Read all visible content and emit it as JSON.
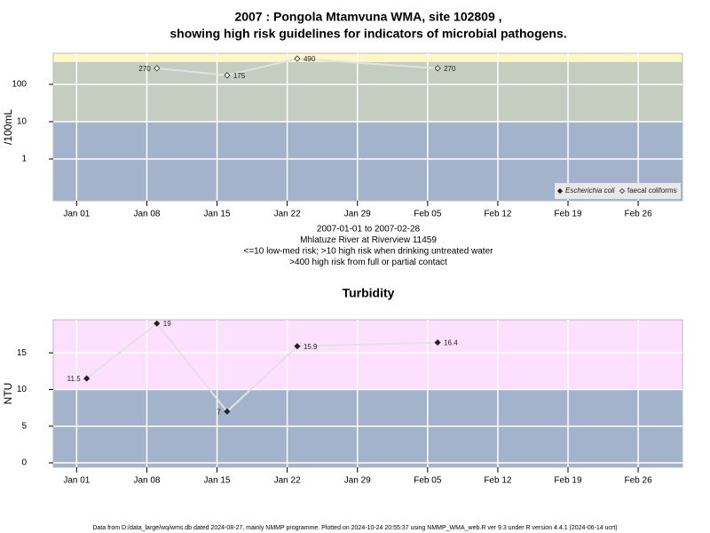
{
  "chart_data": [
    {
      "type": "line",
      "title": [
        "2007 : Pongola Mtamvuna WMA, site 102809 ,",
        "showing high risk guidelines for indicators of microbial pathogens."
      ],
      "ylabel": "/100mL",
      "annotations": [
        "2007-01-01 to 2007-02-28",
        "Mhlatuze River at Riverview 11459",
        "<=10 low-med risk; >10 high risk when drinking untreated water",
        ">400 high risk from full or partial contact"
      ],
      "log_scale": true,
      "ylim": [
        0.076,
        680
      ],
      "yticks": [
        1,
        10,
        100
      ],
      "xlim": [
        "2006-12-29T16:00",
        "2007-03-02T10:00"
      ],
      "xticks": [
        {
          "value": "2007-01-01",
          "label": "Jan 01"
        },
        {
          "value": "2007-01-08",
          "label": "Jan 08"
        },
        {
          "value": "2007-01-15",
          "label": "Jan 15"
        },
        {
          "value": "2007-01-22",
          "label": "Jan 22"
        },
        {
          "value": "2007-01-29",
          "label": "Jan 29"
        },
        {
          "value": "2007-02-05",
          "label": "Feb 05"
        },
        {
          "value": "2007-02-12",
          "label": "Feb 12"
        },
        {
          "value": "2007-02-19",
          "label": "Feb 19"
        },
        {
          "value": "2007-02-26",
          "label": "Feb 26"
        }
      ],
      "bands": [
        {
          "to": 10,
          "color": "#a3b3cb"
        },
        {
          "from": 10,
          "to": 400,
          "color": "#c4cdc0"
        },
        {
          "from": 400,
          "color": "#fdf8c6"
        }
      ],
      "grid": true,
      "legend": "lower right",
      "series": [
        {
          "name": "Escherichia coli",
          "marker": "filled",
          "x": [],
          "values": []
        },
        {
          "name": "faecal coliforms",
          "marker": "hollow",
          "x": [
            "2007-01-09",
            "2007-01-16",
            "2007-01-23",
            "2007-02-06"
          ],
          "values": [
            270,
            175,
            490,
            270
          ]
        }
      ]
    },
    {
      "type": "line",
      "title": "Turbidity",
      "ylabel": "NTU",
      "ylim": [
        -0.6,
        19.5
      ],
      "yticks": [
        0,
        5,
        10,
        15
      ],
      "xlim": [
        "2006-12-29T16:00",
        "2007-03-02T10:00"
      ],
      "xticks": [
        {
          "value": "2007-01-01",
          "label": "Jan 01"
        },
        {
          "value": "2007-01-08",
          "label": "Jan 08"
        },
        {
          "value": "2007-01-15",
          "label": "Jan 15"
        },
        {
          "value": "2007-01-22",
          "label": "Jan 22"
        },
        {
          "value": "2007-01-29",
          "label": "Jan 29"
        },
        {
          "value": "2007-02-05",
          "label": "Feb 05"
        },
        {
          "value": "2007-02-12",
          "label": "Feb 12"
        },
        {
          "value": "2007-02-19",
          "label": "Feb 19"
        },
        {
          "value": "2007-02-26",
          "label": "Feb 26"
        }
      ],
      "bands": [
        {
          "to": 10,
          "color": "#a3b3cb"
        },
        {
          "from": 10,
          "color": "#fde0fd"
        }
      ],
      "grid": true,
      "series": [
        {
          "name": "Turbidity",
          "marker": "filled",
          "x": [
            "2007-01-02",
            "2007-01-09",
            "2007-01-16",
            "2007-01-23",
            "2007-02-06"
          ],
          "values": [
            11.5,
            19,
            7,
            15.9,
            16.4
          ]
        }
      ]
    }
  ],
  "footer": "Data from D:/data_large/wq/wms.db dated 2024-08-27, mainly NMMP programme. Plotted on 2024-10-24 20:55:37 using NMMP_WMA_web.R ver 9.3 under R version 4.4.1 (2024-06-14 ucrt)"
}
